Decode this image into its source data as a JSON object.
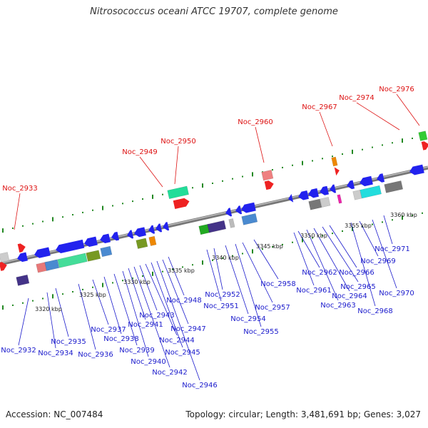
{
  "title": "Nitrosococcus oceani ATCC 19707, complete genome",
  "footer": {
    "accession": "Accession: NC_007484",
    "summary": "Topology: circular; Length: 3,481,691 bp; Genes: 3,027"
  },
  "colors": {
    "forward_label": "#dd1111",
    "reverse_label": "#1a1acc",
    "backbone": "#8a8a8a",
    "tick": "#228822"
  },
  "scale_labels": [
    "3320 kbp",
    "3325 kbp",
    "3330 kbp",
    "3335 kbp",
    "3340 kbp",
    "3345 kbp",
    "3350 kbp",
    "3355 kbp",
    "3360 kbp"
  ],
  "forward_genes": [
    "Noc_2933",
    "Noc_2949",
    "Noc_2950",
    "Noc_2960",
    "Noc_2967",
    "Noc_2974",
    "Noc_2976"
  ],
  "reverse_genes": [
    "Noc_2932",
    "Noc_2934",
    "Noc_2935",
    "Noc_2936",
    "Noc_2937",
    "Noc_2938",
    "Noc_2939",
    "Noc_2940",
    "Noc_2941",
    "Noc_2942",
    "Noc_2943",
    "Noc_2944",
    "Noc_2945",
    "Noc_2946",
    "Noc_2947",
    "Noc_2948",
    "Noc_2951",
    "Noc_2952",
    "Noc_2954",
    "Noc_2955",
    "Noc_2957",
    "Noc_2958",
    "Noc_2961",
    "Noc_2962",
    "Noc_2963",
    "Noc_2964",
    "Noc_2965",
    "Noc_2966",
    "Noc_2968",
    "Noc_2969",
    "Noc_2970",
    "Noc_2971"
  ]
}
